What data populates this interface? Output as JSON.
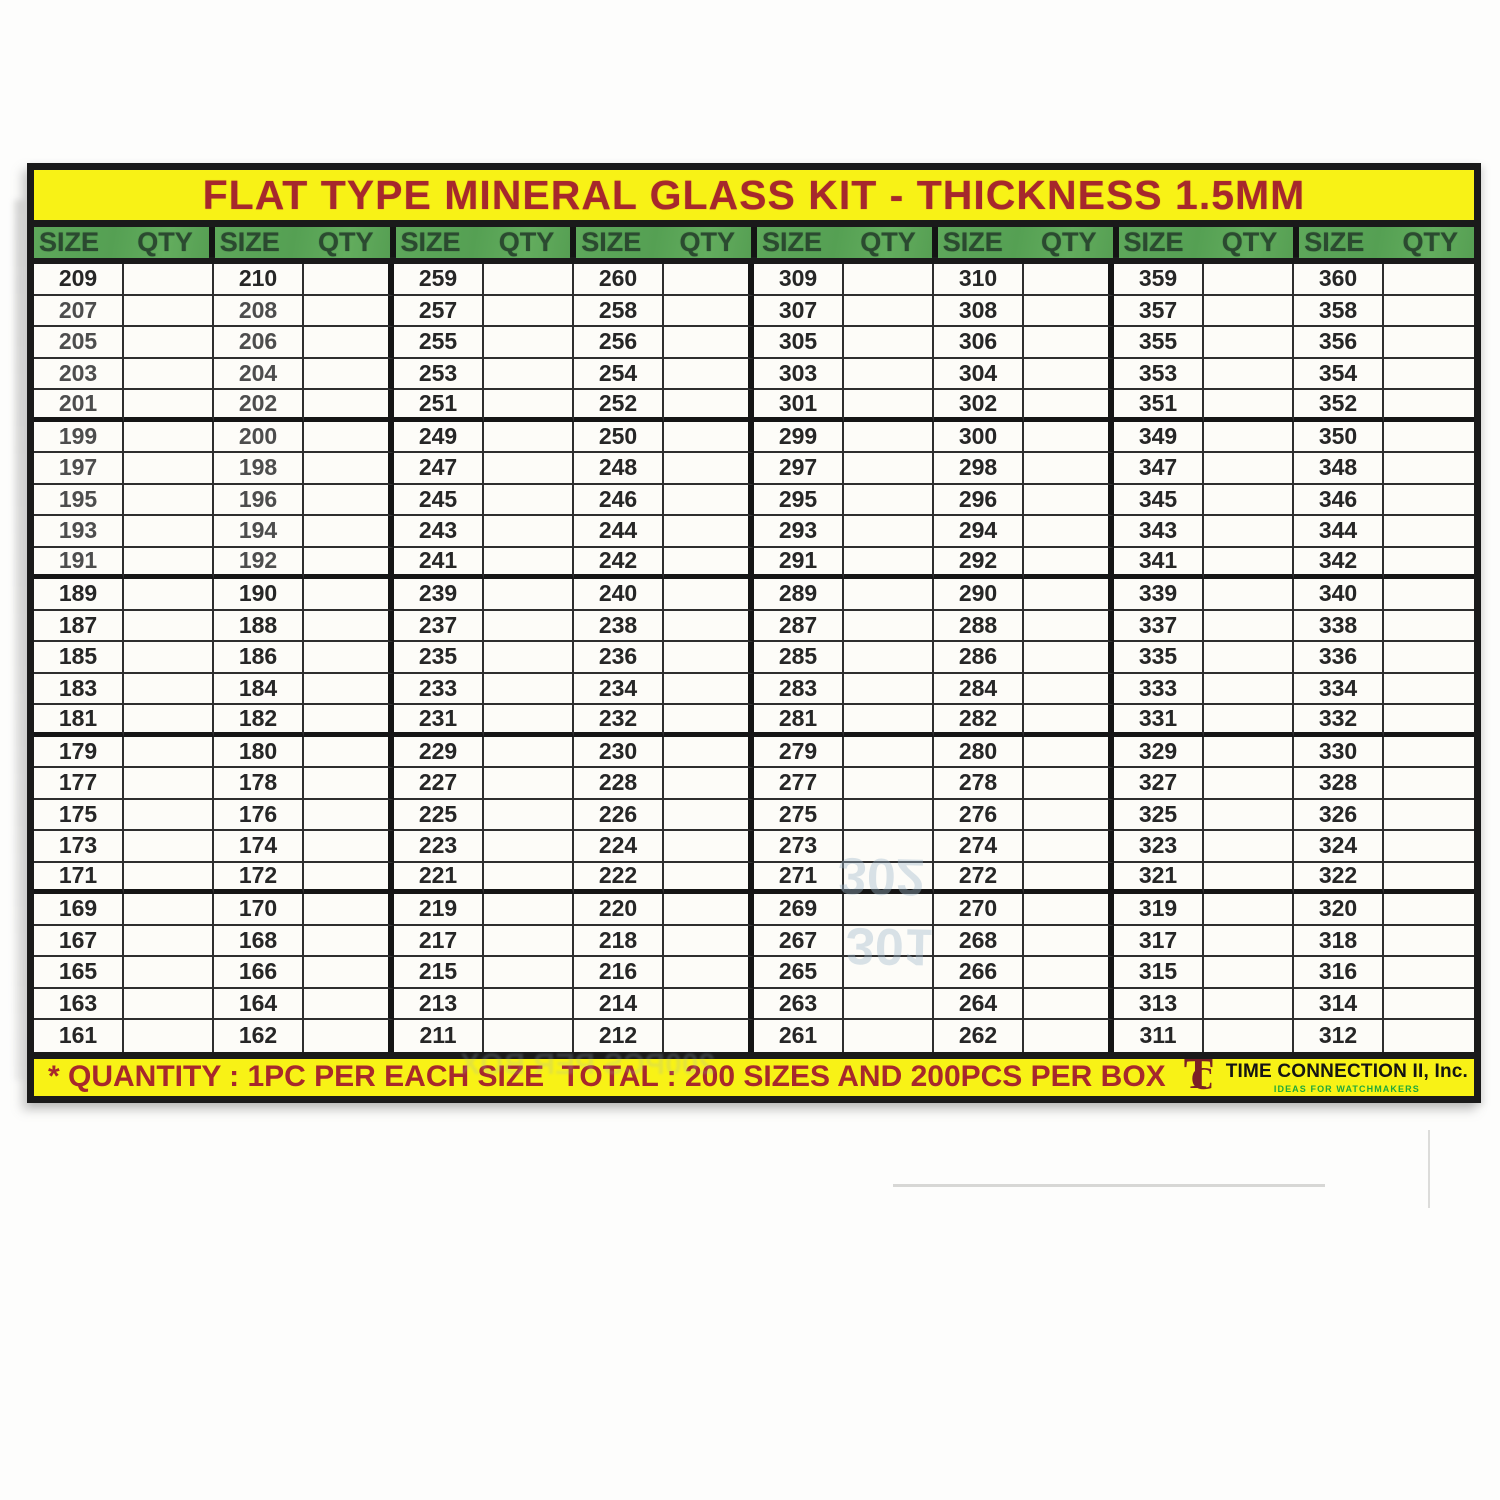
{
  "title": "FLAT TYPE MINERAL GLASS KIT - THICKNESS 1.5MM",
  "header": {
    "size_label": "SIZE",
    "qty_label": "QTY",
    "pair_count": 8
  },
  "table": {
    "row_count": 25,
    "qty_value": "",
    "columns": [
      [
        209,
        207,
        205,
        203,
        201,
        199,
        197,
        195,
        193,
        191,
        189,
        187,
        185,
        183,
        181,
        179,
        177,
        175,
        173,
        171,
        169,
        167,
        165,
        163,
        161
      ],
      [
        210,
        208,
        206,
        204,
        202,
        200,
        198,
        196,
        194,
        192,
        190,
        188,
        186,
        184,
        182,
        180,
        178,
        176,
        174,
        172,
        170,
        168,
        166,
        164,
        162
      ],
      [
        259,
        257,
        255,
        253,
        251,
        249,
        247,
        245,
        243,
        241,
        239,
        237,
        235,
        233,
        231,
        229,
        227,
        225,
        223,
        221,
        219,
        217,
        215,
        213,
        211
      ],
      [
        260,
        258,
        256,
        254,
        252,
        250,
        248,
        246,
        244,
        242,
        240,
        238,
        236,
        234,
        232,
        230,
        228,
        226,
        224,
        222,
        220,
        218,
        216,
        214,
        212
      ],
      [
        309,
        307,
        305,
        303,
        301,
        299,
        297,
        295,
        293,
        291,
        289,
        287,
        285,
        283,
        281,
        279,
        277,
        275,
        273,
        271,
        269,
        267,
        265,
        263,
        261
      ],
      [
        310,
        308,
        306,
        304,
        302,
        300,
        298,
        296,
        294,
        292,
        290,
        288,
        286,
        284,
        282,
        280,
        278,
        276,
        274,
        272,
        270,
        268,
        266,
        264,
        262
      ],
      [
        359,
        357,
        355,
        353,
        351,
        349,
        347,
        345,
        343,
        341,
        339,
        337,
        335,
        333,
        331,
        329,
        327,
        325,
        323,
        321,
        319,
        317,
        315,
        313,
        311
      ],
      [
        360,
        358,
        356,
        354,
        352,
        350,
        348,
        346,
        344,
        342,
        340,
        338,
        336,
        334,
        332,
        330,
        328,
        326,
        324,
        322,
        320,
        318,
        316,
        314,
        312
      ]
    ]
  },
  "footer": {
    "quantity_note": "* QUANTITY : 1PC PER EACH SIZE",
    "total_note": "TOTAL : 200 SIZES AND 200PCS PER BOX",
    "logo": {
      "monogram_t": "T",
      "monogram_c": "C",
      "company": "TIME CONNECTION II, Inc.",
      "tagline": "IDEAS FOR WATCHMAKERS"
    }
  },
  "artifacts": {
    "ghost_number_1": "302",
    "ghost_number_2": "301",
    "ghost_strip": "200PCS PER BOX"
  },
  "colors": {
    "banner_yellow": "#f8f216",
    "banner_text_red": "#a6282c",
    "header_green": "#5aa357",
    "header_text_green": "#2b4a30",
    "border_black": "#1a1a1a",
    "number_black": "#262626",
    "logo_maroon": "#7b2026",
    "tagline_green": "#1ea83b"
  }
}
